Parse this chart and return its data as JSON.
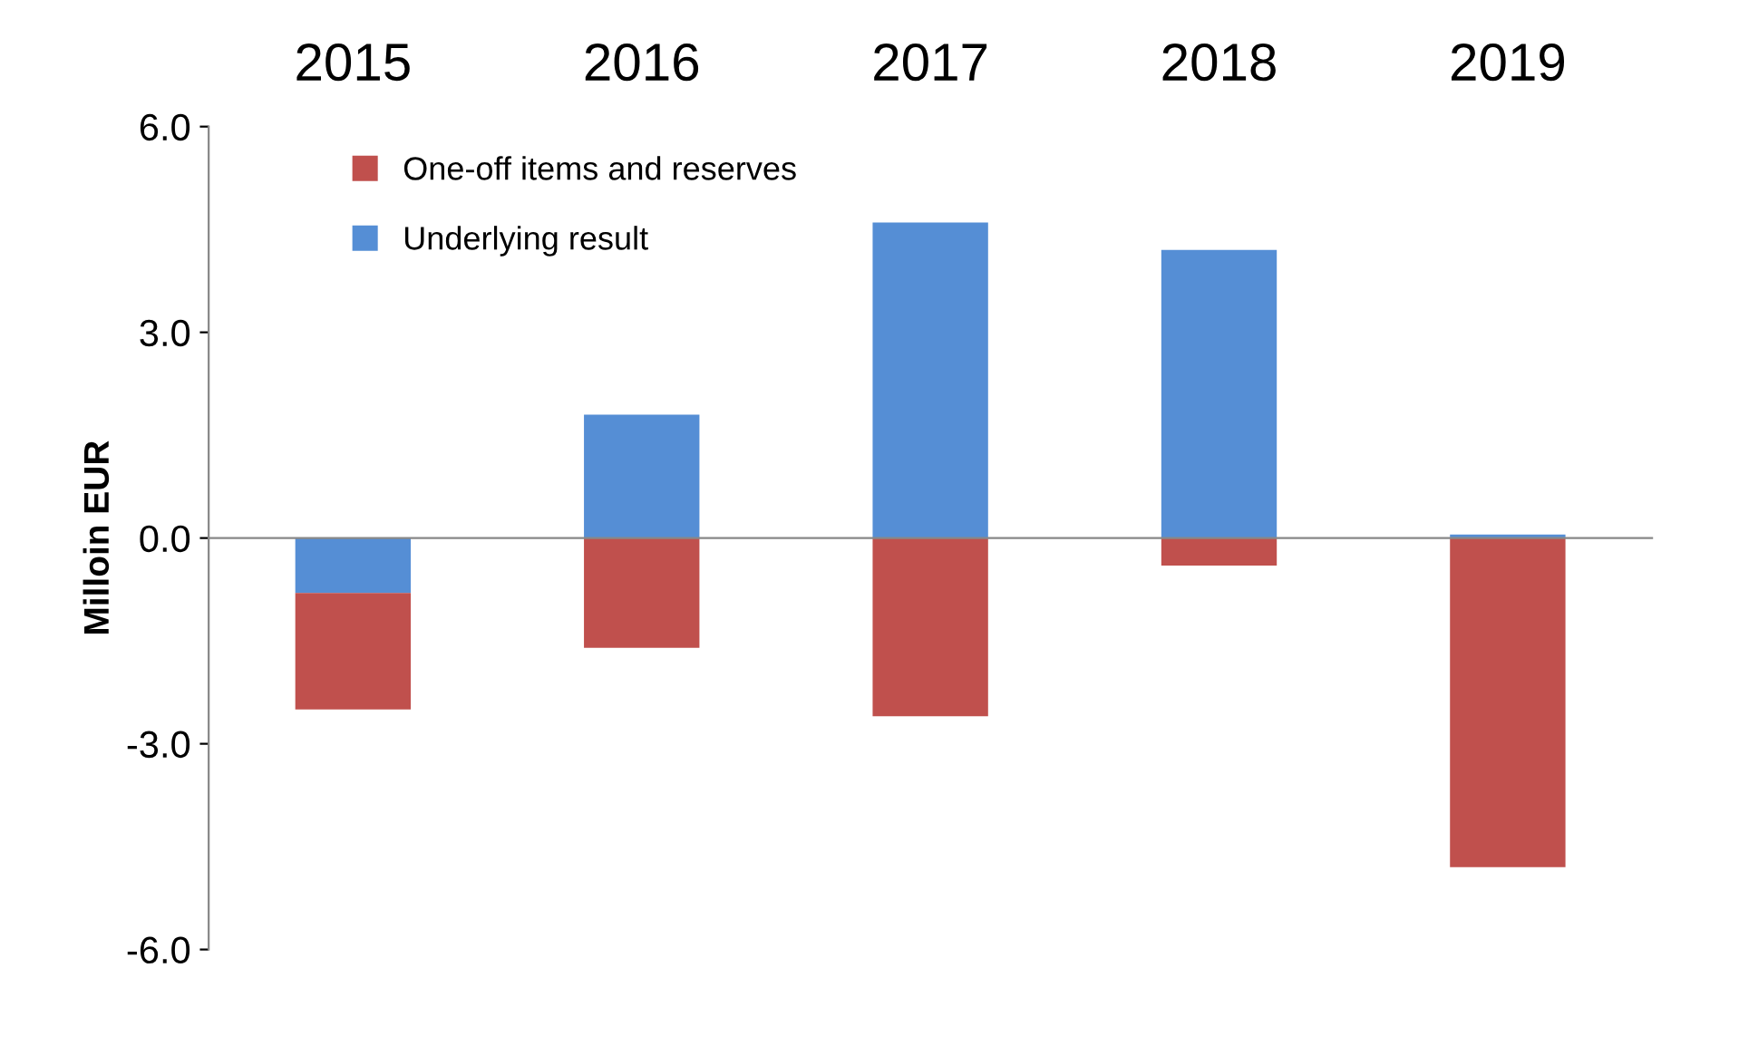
{
  "chart_data": {
    "type": "bar",
    "stacked": true,
    "ylabel": "Milloin EUR",
    "categories": [
      "2015",
      "2016",
      "2017",
      "2018",
      "2019"
    ],
    "series": [
      {
        "name": "Underlying result",
        "color": "#558ed5",
        "values": [
          -0.8,
          1.8,
          4.6,
          4.2,
          0.05
        ]
      },
      {
        "name": "One-off items and reserves",
        "color": "#c0504d",
        "values": [
          -1.7,
          -1.6,
          -2.6,
          -0.4,
          -4.8
        ]
      }
    ],
    "ylim": [
      -6,
      6
    ],
    "yticks": [
      {
        "value": -6,
        "label": "-6.0"
      },
      {
        "value": -3,
        "label": "-3.0"
      },
      {
        "value": 0,
        "label": "0.0"
      },
      {
        "value": 3,
        "label": "3.0"
      },
      {
        "value": 6,
        "label": "6.0"
      }
    ],
    "legend": "top left"
  }
}
